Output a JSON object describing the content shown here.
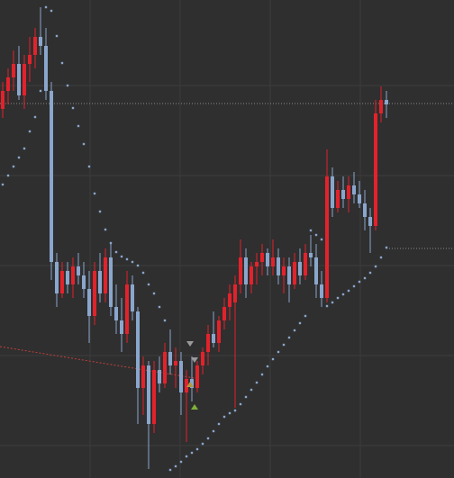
{
  "chart_data": {
    "type": "candlestick",
    "xlim": [
      -0.5,
      83.5
    ],
    "ylim": [
      0,
      531
    ],
    "xticks": [
      16.17,
      32.83,
      49.5,
      66.17
    ],
    "yticks": [
      36,
      136,
      236,
      336,
      436
    ],
    "grid": true,
    "up_color": "#e3222b",
    "down_color": "#8aa6cc",
    "open": [
      410,
      430,
      445,
      460,
      425,
      460,
      470,
      490,
      480,
      430,
      240,
      205,
      230,
      215,
      235,
      225,
      210,
      180,
      230,
      205,
      245,
      190,
      175,
      160,
      215,
      185,
      100,
      125,
      60,
      120,
      105,
      140,
      125,
      130,
      95,
      110,
      100,
      125,
      140,
      160,
      150,
      175,
      190,
      195,
      215,
      245,
      215,
      235,
      240,
      250,
      235,
      245,
      225,
      235,
      215,
      240,
      225,
      250,
      245,
      215,
      200,
      335,
      300,
      320,
      310,
      325,
      315,
      305,
      290,
      280,
      405,
      420
    ],
    "high": [
      440,
      455,
      475,
      480,
      470,
      490,
      500,
      523,
      500,
      440,
      250,
      240,
      240,
      245,
      250,
      240,
      230,
      240,
      250,
      255,
      260,
      215,
      200,
      230,
      225,
      190,
      135,
      130,
      130,
      135,
      150,
      165,
      145,
      140,
      120,
      135,
      130,
      145,
      170,
      185,
      180,
      200,
      215,
      225,
      265,
      255,
      240,
      250,
      260,
      255,
      265,
      255,
      245,
      245,
      250,
      255,
      260,
      270,
      260,
      230,
      365,
      345,
      330,
      335,
      335,
      340,
      330,
      320,
      300,
      420,
      435,
      430
    ],
    "low": [
      400,
      415,
      430,
      420,
      410,
      440,
      455,
      470,
      420,
      220,
      190,
      200,
      205,
      200,
      215,
      200,
      150,
      170,
      195,
      195,
      180,
      160,
      140,
      150,
      175,
      60,
      70,
      10,
      50,
      95,
      100,
      115,
      100,
      70,
      40,
      85,
      95,
      115,
      125,
      145,
      140,
      165,
      175,
      78,
      205,
      200,
      205,
      215,
      225,
      225,
      225,
      215,
      205,
      195,
      210,
      215,
      220,
      235,
      200,
      190,
      195,
      290,
      295,
      300,
      295,
      305,
      300,
      275,
      250,
      275,
      395,
      400
    ],
    "close": [
      430,
      445,
      460,
      425,
      460,
      470,
      490,
      480,
      430,
      240,
      205,
      230,
      215,
      235,
      225,
      210,
      180,
      230,
      205,
      245,
      190,
      175,
      160,
      215,
      185,
      100,
      125,
      60,
      120,
      105,
      140,
      125,
      130,
      95,
      110,
      100,
      125,
      140,
      160,
      150,
      175,
      190,
      205,
      215,
      245,
      215,
      235,
      240,
      250,
      235,
      245,
      225,
      235,
      215,
      240,
      225,
      250,
      245,
      215,
      200,
      335,
      300,
      320,
      310,
      325,
      315,
      305,
      290,
      280,
      405,
      420,
      415
    ],
    "sar": {
      "color": "#8aa6cc",
      "values": [
        326,
        336,
        346,
        356,
        366,
        385,
        401,
        430,
        523,
        519,
        491,
        461,
        436,
        411,
        391,
        371,
        346,
        316,
        296,
        276,
        261,
        251,
        246,
        243,
        240,
        236,
        228,
        215,
        205,
        190,
        175,
        9,
        13,
        18,
        24,
        28,
        32,
        38,
        44,
        52,
        60,
        68,
        72,
        75,
        82,
        90,
        98,
        106,
        115,
        124,
        132,
        140,
        148,
        156,
        164,
        172,
        180,
        275,
        270,
        265,
        191,
        195,
        200,
        204,
        208,
        213,
        218,
        222,
        228,
        235,
        245,
        256
      ]
    },
    "levels": [
      {
        "value": 416,
        "from": -0.5,
        "color": "#8a8a8a"
      },
      {
        "value": 255,
        "from": 71,
        "color": "#8a8a8a"
      }
    ],
    "trend_line": {
      "x": [
        -0.5,
        35.5
      ],
      "values": [
        146,
        111
      ],
      "color": "#c0403c"
    }
  }
}
